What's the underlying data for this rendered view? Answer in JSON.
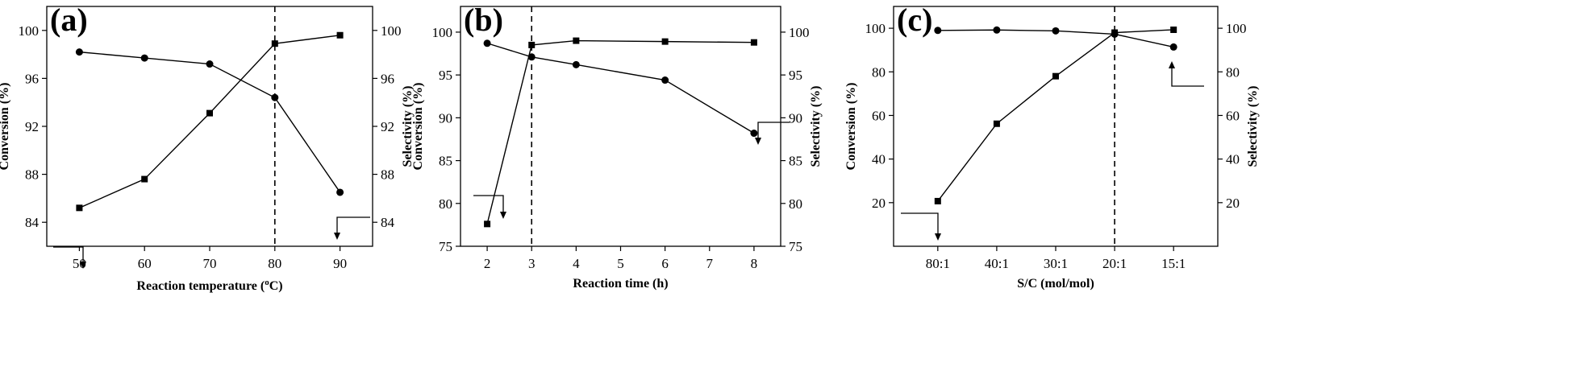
{
  "chart_data": [
    {
      "panel_label": "(a)",
      "type": "line",
      "xlabel": "Reaction temperature (",
      "xlabel_sup": "o",
      "xlabel_tail": "C)",
      "ylabel_left": "Conversion (%)",
      "ylabel_right": "Selectivity (%)",
      "x": [
        50,
        60,
        70,
        80,
        90
      ],
      "xticks": [
        "50",
        "60",
        "70",
        "80",
        "90"
      ],
      "xlim": [
        45,
        95
      ],
      "ylim_left": [
        82,
        102
      ],
      "ylim_right": [
        82,
        102
      ],
      "yticks_left": [
        "84",
        "88",
        "92",
        "96",
        "100"
      ],
      "yticks_right": [
        "84",
        "88",
        "92",
        "96",
        "100"
      ],
      "series": [
        {
          "marker": "square",
          "axis": "left",
          "values": [
            85.2,
            87.6,
            93.1,
            98.9,
            99.6
          ]
        },
        {
          "marker": "circle",
          "axis": "right",
          "values": [
            98.2,
            97.7,
            97.2,
            94.4,
            86.5
          ]
        }
      ],
      "vline_x": 80
    },
    {
      "panel_label": "(b)",
      "type": "line",
      "xlabel": "Reaction time (h)",
      "ylabel_left": "Conversion (%)",
      "ylabel_right": "Selectivity (%)",
      "x": [
        2,
        3,
        4,
        6,
        8
      ],
      "xticks": [
        "2",
        "3",
        "4",
        "5",
        "6",
        "7",
        "8"
      ],
      "xtick_values": [
        2,
        3,
        4,
        5,
        6,
        7,
        8
      ],
      "xlim": [
        1.4,
        8.6
      ],
      "ylim_left": [
        75,
        103
      ],
      "ylim_right": [
        75,
        103
      ],
      "yticks_left": [
        "75",
        "80",
        "85",
        "90",
        "95",
        "100"
      ],
      "yticks_right": [
        "75",
        "80",
        "85",
        "90",
        "95",
        "100"
      ],
      "series": [
        {
          "marker": "square",
          "axis": "left",
          "values": [
            77.6,
            98.5,
            99.0,
            98.9,
            98.8
          ]
        },
        {
          "marker": "circle",
          "axis": "right",
          "values": [
            98.7,
            97.1,
            96.2,
            94.4,
            88.2
          ]
        }
      ],
      "vline_x": 3
    },
    {
      "panel_label": "(c)",
      "type": "line",
      "xlabel": "S/C (mol/mol)",
      "ylabel_left": "Conversion (%)",
      "ylabel_right": "Selectivity (%)",
      "categories": [
        "80:1",
        "40:1",
        "30:1",
        "20:1",
        "15:1"
      ],
      "ylim_left": [
        0,
        110
      ],
      "ylim_right": [
        0,
        110
      ],
      "yticks_left": [
        "20",
        "40",
        "60",
        "80",
        "100"
      ],
      "yticks_right": [
        "20",
        "40",
        "60",
        "80",
        "100"
      ],
      "series": [
        {
          "marker": "square",
          "axis": "left",
          "values": [
            20.7,
            56.2,
            78.0,
            98.0,
            99.3
          ]
        },
        {
          "marker": "circle",
          "axis": "right",
          "values": [
            99.0,
            99.2,
            98.8,
            97.3,
            91.4
          ]
        }
      ],
      "vline_category": "20:1"
    }
  ]
}
